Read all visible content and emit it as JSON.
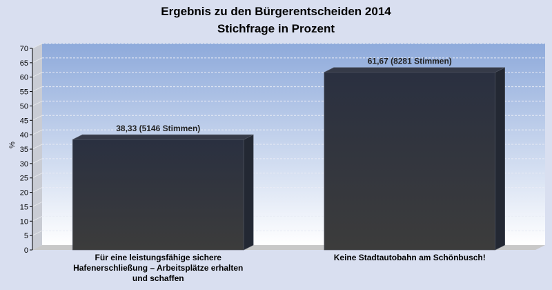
{
  "chart_data": {
    "type": "bar",
    "title": "Ergebnis zu den Bürgerentscheiden 2014",
    "subtitle": "Stichfrage in Prozent",
    "xlabel": "",
    "ylabel": "%",
    "ylim": [
      0,
      70
    ],
    "ytick_step": 5,
    "yticks": [
      "0",
      "5",
      "10",
      "15",
      "20",
      "25",
      "30",
      "35",
      "40",
      "45",
      "50",
      "55",
      "60",
      "65",
      "70"
    ],
    "grid": true,
    "categories": [
      [
        "Für eine leistungsfähige sichere",
        "Hafenerschließung – Arbeitsplätze erhalten",
        "und schaffen"
      ],
      [
        "Keine Stadtautobahn am Schönbusch!"
      ]
    ],
    "values": [
      38.33,
      61.67
    ],
    "data_labels": [
      "38,33 (5146 Stimmen)",
      "61,67 (8281 Stimmen)"
    ],
    "colors": {
      "bar_top": "#2a3040",
      "bar_bottom": "#3c3c3c",
      "bar_side": "#232833",
      "bar_cap": "#353a48",
      "plot_top": "#8eaadb",
      "plot_bottom": "#ffffff",
      "background": "#d9dff0",
      "wall_side": "#c9ccd4",
      "floor": "#c8c8c8"
    }
  }
}
